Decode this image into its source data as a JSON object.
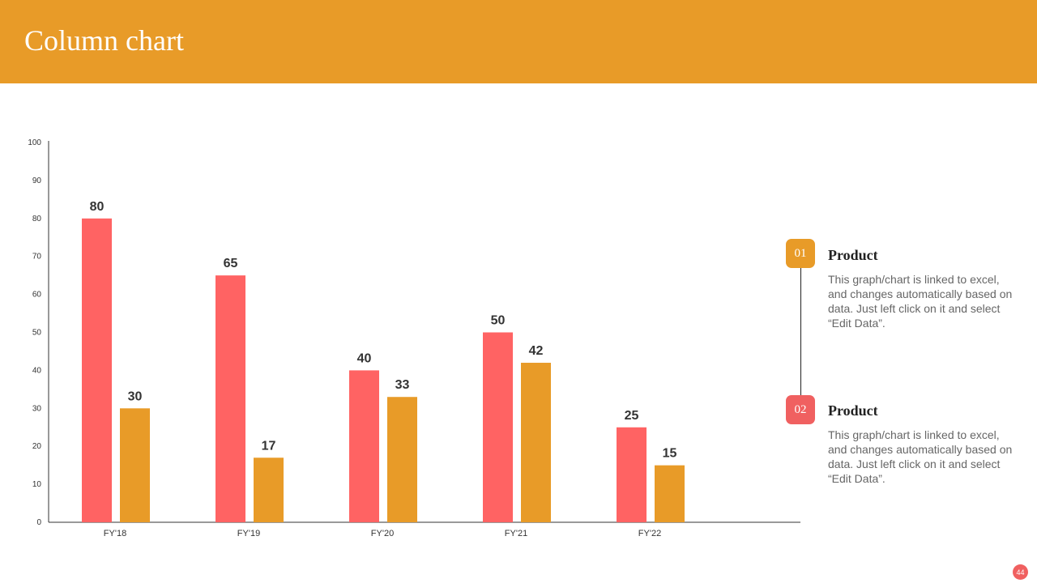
{
  "header": {
    "title": "Column chart"
  },
  "colors": {
    "header": "#E89B28",
    "series1": "#FF6363",
    "series2": "#E89B28",
    "badge1": "#E89B28",
    "badge2": "#F06060"
  },
  "chart_data": {
    "type": "bar",
    "categories": [
      "FY'18",
      "FY'19",
      "FY'20",
      "FY'21",
      "FY'22"
    ],
    "series": [
      {
        "values": [
          80,
          65,
          40,
          50,
          25
        ],
        "color": "#FF6363"
      },
      {
        "values": [
          30,
          17,
          33,
          42,
          15
        ],
        "color": "#E89B28"
      }
    ],
    "ylim": [
      0,
      100
    ],
    "yticks": [
      0,
      10,
      20,
      30,
      40,
      50,
      60,
      70,
      80,
      90,
      100
    ],
    "grid": false,
    "data_labels": true
  },
  "legend": [
    {
      "number": "01",
      "title": "Product",
      "text": "This graph/chart is linked to excel, and changes automatically based on data. Just left click on it and select “Edit Data”."
    },
    {
      "number": "02",
      "title": "Product",
      "text": "This graph/chart is linked to excel, and changes automatically based on data. Just left click on it and select “Edit Data”."
    }
  ],
  "page_number": "44"
}
